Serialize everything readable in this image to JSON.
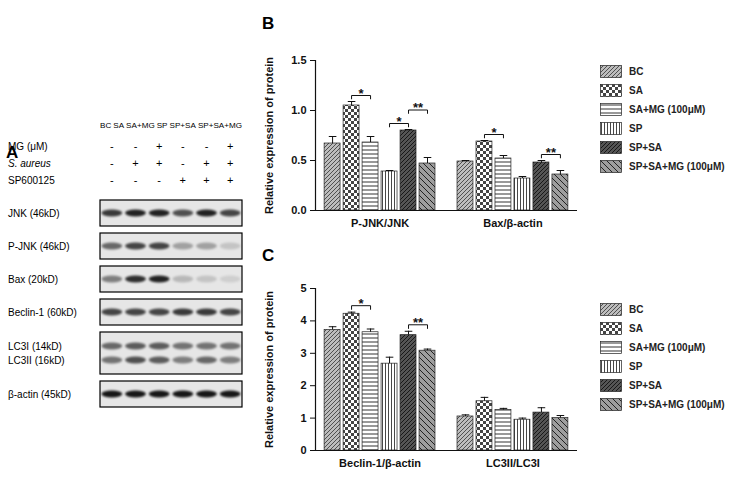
{
  "blot": {
    "panel": "A",
    "lanes": [
      "BC",
      "SA",
      "SA+MG",
      "SP",
      "SP+SA",
      "SP+SA+MG"
    ],
    "treatments": [
      {
        "label": "MG (μM)",
        "signs": [
          "-",
          "-",
          "+",
          "-",
          "-",
          "+"
        ]
      },
      {
        "label": "S. aureus",
        "signs": [
          "-",
          "+",
          "+",
          "-",
          "+",
          "+"
        ]
      },
      {
        "label": "SP600125",
        "signs": [
          "-",
          "-",
          "-",
          "+",
          "+",
          "+"
        ]
      }
    ],
    "rows": [
      {
        "labels": [
          "JNK (46kD)"
        ],
        "band_intensity": [
          [
            0.75,
            0.85,
            0.85,
            0.65,
            0.85,
            0.7
          ]
        ]
      },
      {
        "labels": [
          "P-JNK (46kD)"
        ],
        "band_intensity": [
          [
            0.55,
            0.7,
            0.7,
            0.3,
            0.3,
            0.15
          ]
        ]
      },
      {
        "labels": [
          "Bax (20kD)"
        ],
        "band_intensity": [
          [
            0.45,
            0.8,
            0.85,
            0.2,
            0.15,
            0.1
          ]
        ]
      },
      {
        "labels": [
          "Beclin-1 (60kD)"
        ],
        "band_intensity": [
          [
            0.7,
            0.7,
            0.7,
            0.75,
            0.75,
            0.7
          ]
        ]
      },
      {
        "labels": [
          "LC3I (14kD)",
          "LC3II (16kD)"
        ],
        "band_intensity": [
          [
            0.55,
            0.6,
            0.6,
            0.5,
            0.5,
            0.5
          ],
          [
            0.5,
            0.65,
            0.6,
            0.45,
            0.55,
            0.45
          ]
        ]
      },
      {
        "labels": [
          "β-actin (45kD)"
        ],
        "band_intensity": [
          [
            0.9,
            0.9,
            0.9,
            0.9,
            0.9,
            0.9
          ]
        ]
      }
    ]
  },
  "chart_data": [
    {
      "type": "bar",
      "title": "B",
      "y_label": "Relative expression of protein",
      "categories": [
        "P-JNK/JNK",
        "Bax/β-actin"
      ],
      "series": [
        {
          "name": "BC",
          "color": "#bdbdbd",
          "values": [
            0.67,
            0.49
          ],
          "errors": [
            0.07,
            0.01
          ]
        },
        {
          "name": "SA",
          "color": "#ffffff",
          "values": [
            1.05,
            0.69
          ],
          "errors": [
            0.04,
            0.01
          ]
        },
        {
          "name": "SA+MG (100μM)",
          "color": "#ffffff",
          "values": [
            0.68,
            0.52
          ],
          "errors": [
            0.06,
            0.03
          ]
        },
        {
          "name": "SP",
          "color": "#ffffff",
          "values": [
            0.39,
            0.32
          ],
          "errors": [
            0.01,
            0.02
          ]
        },
        {
          "name": "SP+SA",
          "color": "#555555",
          "values": [
            0.8,
            0.48
          ],
          "errors": [
            0.01,
            0.02
          ]
        },
        {
          "name": "SP+SA+MG (100μM)",
          "color": "#9e9e9e",
          "values": [
            0.47,
            0.36
          ],
          "errors": [
            0.06,
            0.04
          ]
        }
      ],
      "ylim": [
        0,
        1.5
      ],
      "yticks": [
        {
          "value": 0,
          "label": "0.0"
        },
        {
          "value": 0.5,
          "label": "0.5"
        },
        {
          "value": 1.0,
          "label": "1.0"
        },
        {
          "value": 1.5,
          "label": "1.5"
        }
      ],
      "legend": "right",
      "annotations": [
        {
          "category": "P-JNK/JNK",
          "from": "SA",
          "to": "SA+MG (100μM)",
          "label": "*"
        },
        {
          "category": "P-JNK/JNK",
          "from": "SP",
          "to": "SP+SA",
          "label": "*"
        },
        {
          "category": "P-JNK/JNK",
          "from": "SP+SA",
          "to": "SP+SA+MG (100μM)",
          "label": "**"
        },
        {
          "category": "Bax/β-actin",
          "from": "SA",
          "to": "SA+MG (100μM)",
          "label": "*"
        },
        {
          "category": "Bax/β-actin",
          "from": "SP+SA",
          "to": "SP+SA+MG (100μM)",
          "label": "**"
        }
      ]
    },
    {
      "type": "bar",
      "title": "C",
      "y_label": "Relative expression of protein",
      "categories": [
        "Beclin-1/β-actin",
        "LC3II/LC3I"
      ],
      "series": [
        {
          "name": "BC",
          "color": "#bdbdbd",
          "values": [
            3.72,
            1.05
          ],
          "errors": [
            0.1,
            0.05
          ]
        },
        {
          "name": "SA",
          "color": "#ffffff",
          "values": [
            4.22,
            1.52
          ],
          "errors": [
            0.05,
            0.12
          ]
        },
        {
          "name": "SA+MG (100μM)",
          "color": "#ffffff",
          "values": [
            3.65,
            1.25
          ],
          "errors": [
            0.1,
            0.05
          ]
        },
        {
          "name": "SP",
          "color": "#ffffff",
          "values": [
            2.68,
            0.95
          ],
          "errors": [
            0.2,
            0.05
          ]
        },
        {
          "name": "SP+SA",
          "color": "#555555",
          "values": [
            3.56,
            1.17
          ],
          "errors": [
            0.12,
            0.15
          ]
        },
        {
          "name": "SP+SA+MG (100μM)",
          "color": "#9e9e9e",
          "values": [
            3.08,
            1.0
          ],
          "errors": [
            0.05,
            0.08
          ]
        }
      ],
      "ylim": [
        0,
        5
      ],
      "yticks": [
        0,
        1,
        2,
        3,
        4,
        5
      ],
      "legend": "right",
      "annotations": [
        {
          "category": "Beclin-1/β-actin",
          "from": "SA",
          "to": "SA+MG (100μM)",
          "label": "*"
        },
        {
          "category": "Beclin-1/β-actin",
          "from": "SP+SA",
          "to": "SP+SA+MG (100μM)",
          "label": "**"
        }
      ]
    }
  ]
}
